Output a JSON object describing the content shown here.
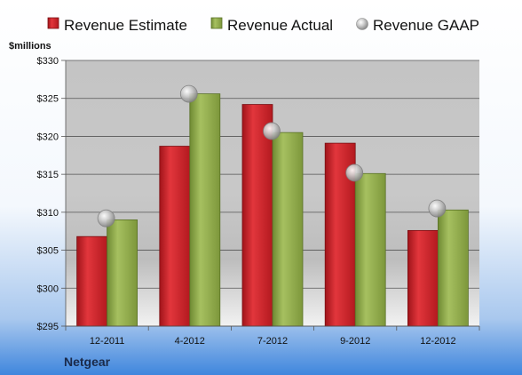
{
  "company": "Netgear",
  "chart_data": {
    "type": "bar",
    "ylabel": "$millions",
    "categories": [
      "12-2011",
      "4-2012",
      "7-2012",
      "9-2012",
      "12-2012"
    ],
    "ylim": [
      295,
      330
    ],
    "ytick_step": 5,
    "ytick_labels": [
      "$295",
      "$300",
      "$305",
      "$310",
      "$315",
      "$320",
      "$325",
      "$330"
    ],
    "grid": true,
    "legend_position": "top",
    "series": [
      {
        "name": "Revenue Estimate",
        "kind": "bar",
        "color": "#cc1f26",
        "values": [
          306.8,
          318.7,
          324.2,
          319.1,
          307.6
        ]
      },
      {
        "name": "Revenue Actual",
        "kind": "bar",
        "color": "#8faa4a",
        "values": [
          309.0,
          325.6,
          320.5,
          315.1,
          310.3
        ]
      },
      {
        "name": "Revenue GAAP",
        "kind": "marker",
        "color": "#c0c0c0",
        "values": [
          309.2,
          325.6,
          320.7,
          315.2,
          310.5
        ]
      }
    ]
  }
}
